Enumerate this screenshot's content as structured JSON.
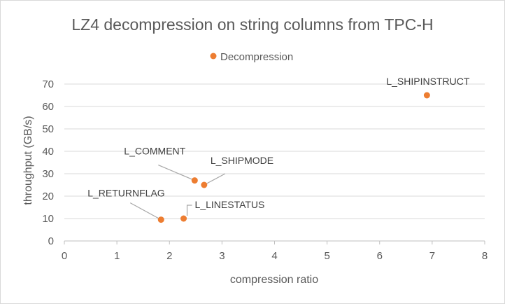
{
  "chart_data": {
    "type": "scatter",
    "title": "LZ4 decompression on string columns from TPC-H",
    "xlabel": "compression ratio",
    "ylabel": "throughput (GB/s)",
    "xlim": [
      0,
      8
    ],
    "ylim": [
      0,
      70
    ],
    "x_ticks": [
      0,
      1,
      2,
      3,
      4,
      5,
      6,
      7,
      8
    ],
    "y_ticks": [
      0,
      10,
      20,
      30,
      40,
      50,
      60,
      70
    ],
    "grid": "horizontal",
    "legend_position": "top",
    "series": [
      {
        "name": "Decompression",
        "color": "#ed7d31",
        "points": [
          {
            "label": "L_RETURNFLAG",
            "x": 1.84,
            "y": 9.5
          },
          {
            "label": "L_LINESTATUS",
            "x": 2.27,
            "y": 10.0
          },
          {
            "label": "L_COMMENT",
            "x": 2.48,
            "y": 27.0
          },
          {
            "label": "L_SHIPMODE",
            "x": 2.66,
            "y": 25.0
          },
          {
            "label": "L_SHIPINSTRUCT",
            "x": 6.9,
            "y": 65.0
          }
        ]
      }
    ]
  }
}
